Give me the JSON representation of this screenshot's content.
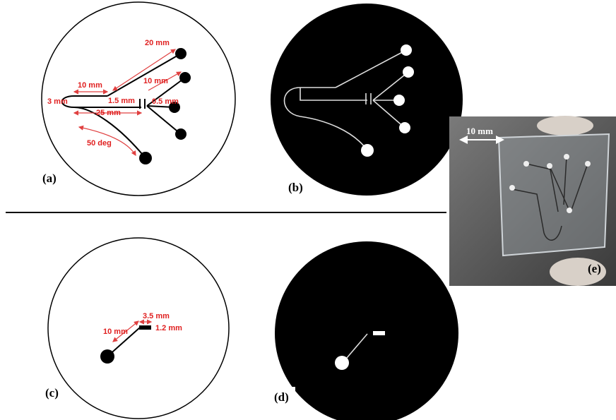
{
  "panels": [
    {
      "label": "(a)",
      "annotations": [
        "20 mm",
        "10 mm",
        "10 mm",
        "3 mm",
        "1.5 mm",
        "0.5 mm",
        "25 mm",
        "50 deg"
      ]
    },
    {
      "label": "(b)"
    },
    {
      "label": "(c)",
      "annotations": [
        "3.5 mm",
        "10 mm",
        "1.2 mm"
      ]
    },
    {
      "label": "(d)"
    },
    {
      "label": "(e)",
      "annotations": [
        "10 mm"
      ]
    }
  ]
}
